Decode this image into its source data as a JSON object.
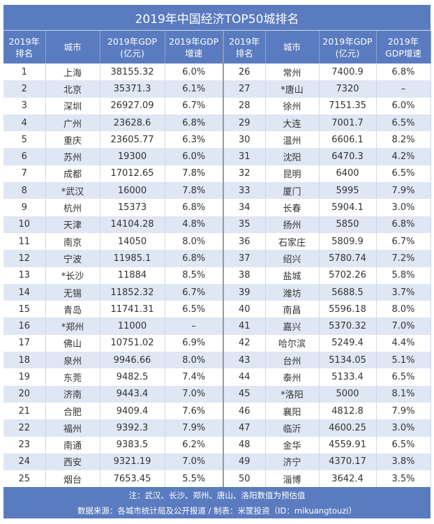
{
  "title": "2019年中国经济TOP50城排名",
  "headers": [
    "2019年\n排名",
    "城市",
    "2019年GDP\n(亿元)",
    "2019年GDP\n增速",
    "2019年\n排名",
    "城市",
    "2019年GDP\n(亿元)",
    "2019年\nGDP增速"
  ],
  "rows": [
    [
      "1",
      "上海",
      "38155.32",
      "6.0%"
    ],
    [
      "2",
      "北京",
      "35371.3",
      "6.1%"
    ],
    [
      "3",
      "深圳",
      "26927.09",
      "6.7%"
    ],
    [
      "4",
      "广州",
      "23628.6",
      "6.8%"
    ],
    [
      "5",
      "重庆",
      "23605.77",
      "6.3%"
    ],
    [
      "6",
      "苏州",
      "19300",
      "6.0%"
    ],
    [
      "7",
      "成都",
      "17012.65",
      "7.8%"
    ],
    [
      "8",
      "*武汉",
      "16000",
      "7.8%"
    ],
    [
      "9",
      "杭州",
      "15373",
      "6.8%"
    ],
    [
      "10",
      "天津",
      "14104.28",
      "4.8%"
    ],
    [
      "11",
      "南京",
      "14050",
      "8.0%"
    ],
    [
      "12",
      "宁波",
      "11985.1",
      "6.8%"
    ],
    [
      "13",
      "*长沙",
      "11884",
      "8.5%"
    ],
    [
      "14",
      "无锡",
      "11852.32",
      "6.7%"
    ],
    [
      "15",
      "青岛",
      "11741.31",
      "6.5%"
    ],
    [
      "16",
      "*郑州",
      "11000",
      "–"
    ],
    [
      "17",
      "佛山",
      "10751.02",
      "6.9%"
    ],
    [
      "18",
      "泉州",
      "9946.66",
      "8.0%"
    ],
    [
      "19",
      "东莞",
      "9482.5",
      "7.4%"
    ],
    [
      "20",
      "济南",
      "9443.4",
      "7.0%"
    ],
    [
      "21",
      "合肥",
      "9409.4",
      "7.6%"
    ],
    [
      "22",
      "福州",
      "9392.3",
      "7.9%"
    ],
    [
      "23",
      "南通",
      "9383.5",
      "6.2%"
    ],
    [
      "24",
      "西安",
      "9321.19",
      "7.0%"
    ],
    [
      "25",
      "烟台",
      "7653.45",
      "5.5%"
    ],
    [
      "26",
      "常州",
      "7400.9",
      "6.8%"
    ],
    [
      "27",
      "*唐山",
      "7320",
      "–"
    ],
    [
      "28",
      "徐州",
      "7151.35",
      "6.0%"
    ],
    [
      "29",
      "大连",
      "7001.7",
      "6.5%"
    ],
    [
      "30",
      "温州",
      "6606.1",
      "8.2%"
    ],
    [
      "31",
      "沈阳",
      "6470.3",
      "4.2%"
    ],
    [
      "32",
      "昆明",
      "6400",
      "6.5%"
    ],
    [
      "33",
      "厦门",
      "5995",
      "7.9%"
    ],
    [
      "34",
      "长春",
      "5904.1",
      "3.0%"
    ],
    [
      "35",
      "扬州",
      "5850",
      "6.8%"
    ],
    [
      "36",
      "石家庄",
      "5809.9",
      "6.7%"
    ],
    [
      "37",
      "绍兴",
      "5780.74",
      "7.2%"
    ],
    [
      "38",
      "盐城",
      "5702.26",
      "5.8%"
    ],
    [
      "39",
      "潍坊",
      "5688.5",
      "3.7%"
    ],
    [
      "40",
      "南昌",
      "5596.18",
      "8.0%"
    ],
    [
      "41",
      "嘉兴",
      "5370.32",
      "7.0%"
    ],
    [
      "42",
      "哈尔滨",
      "5249.4",
      "4.4%"
    ],
    [
      "43",
      "台州",
      "5134.05",
      "5.1%"
    ],
    [
      "44",
      "泰州",
      "5133.4",
      "6.5%"
    ],
    [
      "45",
      "*洛阳",
      "5000",
      "8.1%"
    ],
    [
      "46",
      "襄阳",
      "4812.8",
      "7.9%"
    ],
    [
      "47",
      "临沂",
      "4600.25",
      "3.0%"
    ],
    [
      "48",
      "金华",
      "4559.91",
      "6.5%"
    ],
    [
      "49",
      "济宁",
      "4370.17",
      "3.8%"
    ],
    [
      "50",
      "淄博",
      "3642.4",
      "3.5%"
    ]
  ],
  "footer": {
    "note": "注：武汉、长沙、郑州、唐山、洛阳数值为预估值",
    "source": "数据来源：各城市统计局及公开报道 / 制表：米筐投资（ID：mikuangtouzi）"
  },
  "watermark": "米筐投资",
  "colors": {
    "header": "#5a7bbf",
    "alt_row": "#dfe6f4"
  }
}
